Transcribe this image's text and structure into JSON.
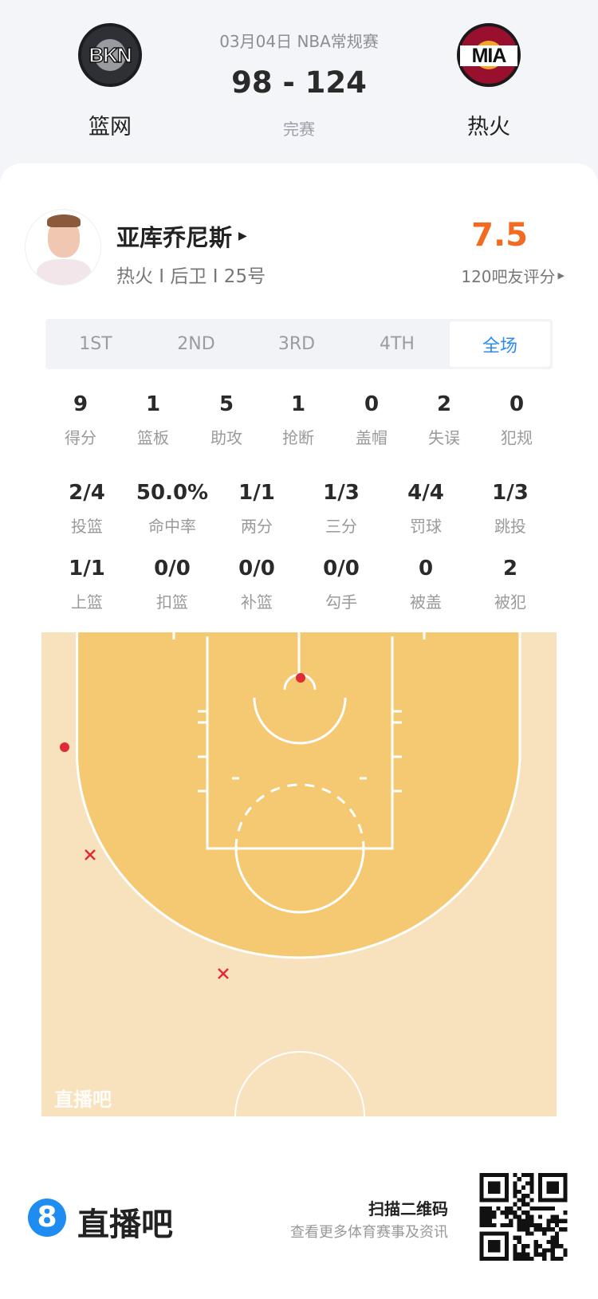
{
  "match": {
    "date_league": "03月04日 NBA常规赛",
    "score": "98 - 124",
    "status": "完赛",
    "home": {
      "name": "篮网",
      "abbr": "BKN"
    },
    "away": {
      "name": "热火",
      "abbr": "MIA"
    }
  },
  "player": {
    "name": "亚库乔尼斯",
    "info": "热火 I 后卫 I 25号",
    "rating": "7.5",
    "rating_label": "120吧友评分",
    "rating_color": "#f26b21"
  },
  "tabs": [
    {
      "label": "1ST"
    },
    {
      "label": "2ND"
    },
    {
      "label": "3RD"
    },
    {
      "label": "4TH"
    },
    {
      "label": "全场",
      "active": true
    }
  ],
  "stats_row1": [
    {
      "v": "9",
      "l": "得分"
    },
    {
      "v": "1",
      "l": "篮板"
    },
    {
      "v": "5",
      "l": "助攻"
    },
    {
      "v": "1",
      "l": "抢断"
    },
    {
      "v": "0",
      "l": "盖帽"
    },
    {
      "v": "2",
      "l": "失误"
    },
    {
      "v": "0",
      "l": "犯规"
    }
  ],
  "stats_row2": [
    {
      "v": "2/4",
      "l": "投篮"
    },
    {
      "v": "50.0%",
      "l": "命中率"
    },
    {
      "v": "1/1",
      "l": "两分"
    },
    {
      "v": "1/3",
      "l": "三分"
    },
    {
      "v": "4/4",
      "l": "罚球"
    },
    {
      "v": "1/3",
      "l": "跳投"
    }
  ],
  "stats_row3": [
    {
      "v": "1/1",
      "l": "上篮"
    },
    {
      "v": "0/0",
      "l": "扣篮"
    },
    {
      "v": "0/0",
      "l": "补篮"
    },
    {
      "v": "0/0",
      "l": "勾手"
    },
    {
      "v": "0",
      "l": "被盖"
    },
    {
      "v": "2",
      "l": "被犯"
    }
  ],
  "shot_chart": {
    "made_color": "#e02a35",
    "missed_color": "#e02a35",
    "shots": [
      {
        "result": "made",
        "zone": "rim"
      },
      {
        "result": "made",
        "zone": "left corner three"
      },
      {
        "result": "missed",
        "zone": "left wing three"
      },
      {
        "result": "missed",
        "zone": "left top three"
      }
    ],
    "watermark": "直播吧"
  },
  "footer": {
    "brand": "直播吧",
    "brand_mark": "8",
    "scan_title": "扫描二维码",
    "scan_sub": "查看更多体育赛事及资讯"
  }
}
